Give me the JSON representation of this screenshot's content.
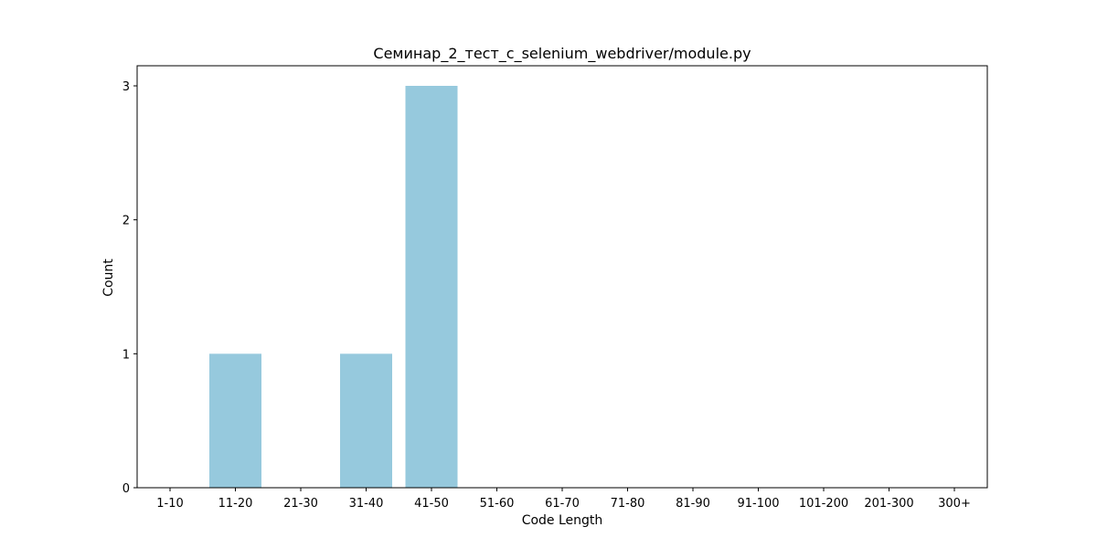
{
  "chart_data": {
    "type": "bar",
    "title": "Семинар_2_тест_с_selenium_webdriver/module.py",
    "xlabel": "Code Length",
    "ylabel": "Count",
    "categories": [
      "1-10",
      "11-20",
      "21-30",
      "31-40",
      "41-50",
      "51-60",
      "61-70",
      "71-80",
      "81-90",
      "91-100",
      "101-200",
      "201-300",
      "300+"
    ],
    "values": [
      0,
      1,
      0,
      1,
      3,
      0,
      0,
      0,
      0,
      0,
      0,
      0,
      0
    ],
    "ylim": [
      0,
      3.15
    ],
    "yticks": [
      0,
      1,
      2,
      3
    ],
    "bar_color": "#96c9dd",
    "grid": false,
    "legend": false
  }
}
